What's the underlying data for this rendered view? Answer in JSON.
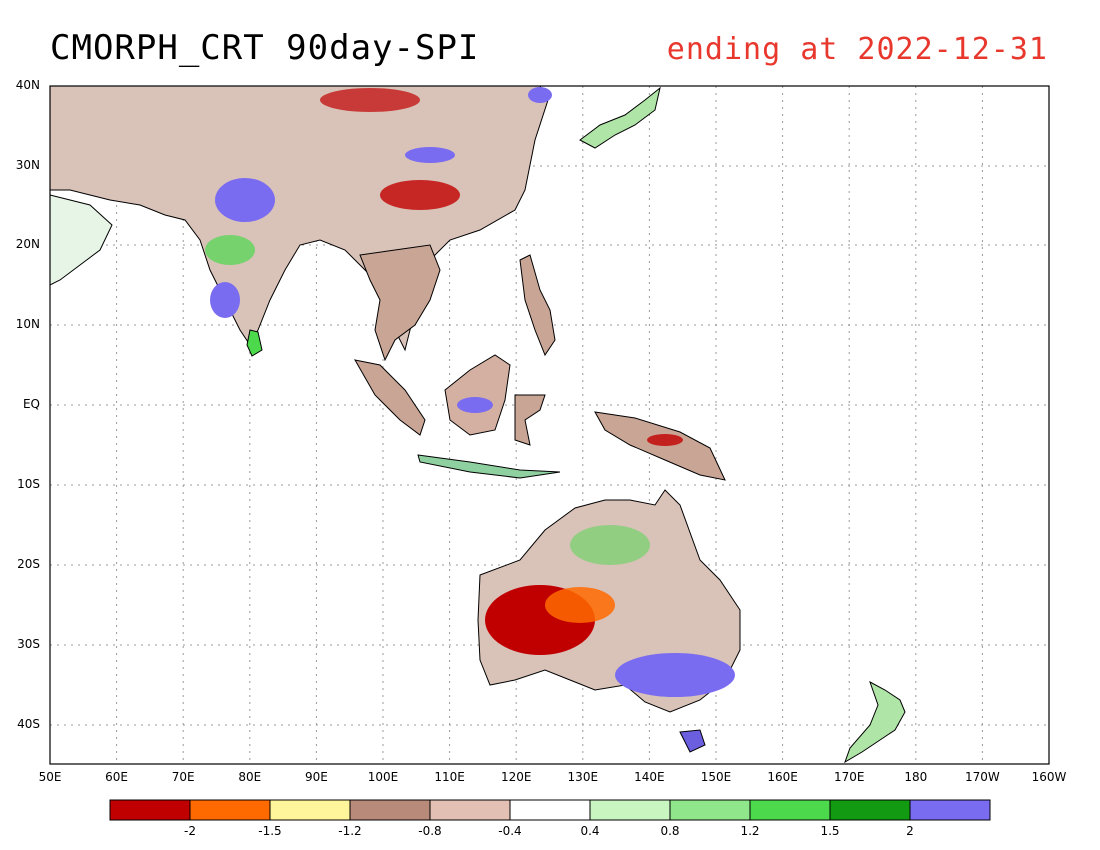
{
  "title": "CMORPH_CRT 90day-SPI",
  "subtitle": "ending at 2022-12-31",
  "lat_labels": [
    "40N",
    "30N",
    "20N",
    "10N",
    "EQ",
    "10S",
    "20S",
    "30S",
    "40S"
  ],
  "lon_labels": [
    "50E",
    "60E",
    "70E",
    "80E",
    "90E",
    "100E",
    "110E",
    "120E",
    "130E",
    "140E",
    "150E",
    "160E",
    "170E",
    "180",
    "170W",
    "160W"
  ],
  "colorbar": {
    "colors": [
      "#c00000",
      "#ff6a00",
      "#fff59a",
      "#b88a7a",
      "#e2c0b4",
      "#ffffff",
      "#c8f5c0",
      "#90e68a",
      "#4cd94c",
      "#129a12",
      "#7a6cf0"
    ],
    "labels": [
      "-2",
      "-1.5",
      "-1.2",
      "-0.8",
      "-0.4",
      "0.4",
      "0.8",
      "1.2",
      "1.5",
      "2"
    ]
  }
}
